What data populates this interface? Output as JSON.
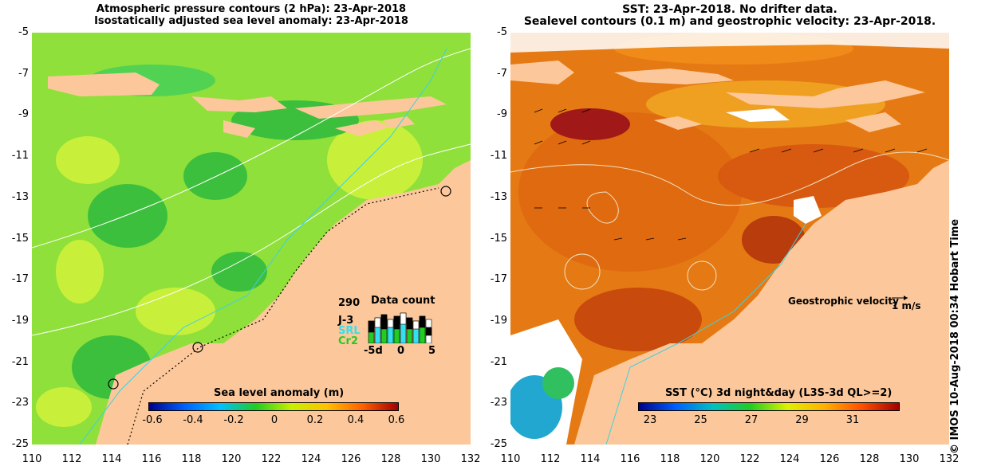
{
  "left": {
    "title_line1": "Atmospheric pressure contours (2 hPa): 23-Apr-2018",
    "title_line2": "Isostatically adjusted sea level anomaly: 23-Apr-2018",
    "colorbar_title": "Sea level anomaly (m)",
    "colorbar_ticks": [
      "-0.6",
      "-0.4",
      "-0.2",
      "0",
      "0.2",
      "0.4",
      "0.6"
    ],
    "data_count": {
      "max_label": "290",
      "title": "Data count",
      "series": [
        "J-3",
        "SRL",
        "Cr2"
      ],
      "series_colors": [
        "#000000",
        "#33e0f0",
        "#22cc22"
      ],
      "x_ticks": [
        "-5d",
        "0",
        "5"
      ]
    }
  },
  "right": {
    "title_line1": "SST: 23-Apr-2018. No drifter data.",
    "title_line2": "Sealevel contours (0.1 m) and geostrophic velocity: 23-Apr-2018.",
    "colorbar_title": "SST (°C) 3d night&day (L3S-3d QL>=2)",
    "colorbar_ticks": [
      "23",
      "25",
      "27",
      "29",
      "31"
    ],
    "geostrophic_label": "Geostrophic velocity",
    "velocity_scale": "1 m/s"
  },
  "axes": {
    "y_ticks": [
      "-5",
      "-7",
      "-9",
      "-11",
      "-13",
      "-15",
      "-17",
      "-19",
      "-21",
      "-23",
      "-25"
    ],
    "x_ticks": [
      "110",
      "112",
      "114",
      "116",
      "118",
      "120",
      "122",
      "124",
      "126",
      "128",
      "130",
      "132"
    ],
    "lon_range": [
      110,
      132
    ],
    "lat_range": [
      -25,
      -5
    ]
  },
  "credit": "© IMOS 10-Aug-2018 00:34 Hobart Time",
  "colors": {
    "land": "#fcc89b",
    "sla_ocean": "#8fe03a",
    "sst_ocean": "#e57a14",
    "sla_colorbar": [
      "#00008b",
      "#0060ff",
      "#00c0ff",
      "#22cc22",
      "#c8f000",
      "#ffc000",
      "#ff6000",
      "#a00000"
    ],
    "sst_colorbar": [
      "#00008b",
      "#0060ff",
      "#00c0c0",
      "#22cc22",
      "#e0f000",
      "#ffb000",
      "#ff5000",
      "#a00000"
    ]
  }
}
